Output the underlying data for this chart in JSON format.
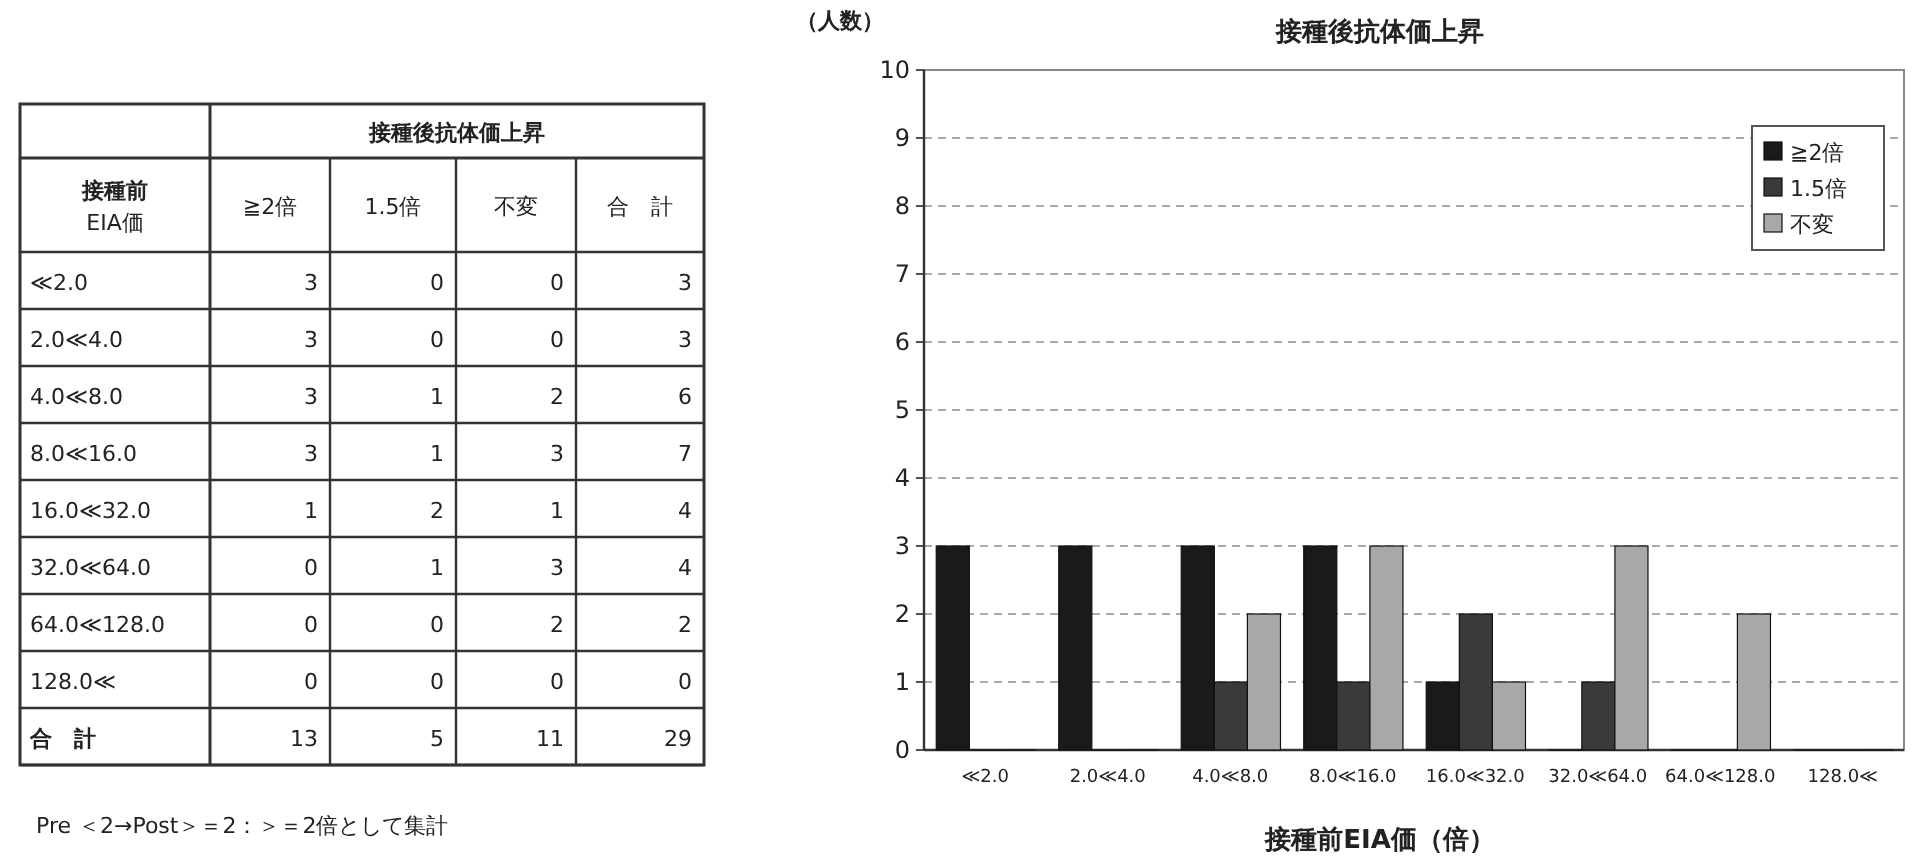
{
  "chart_data": [
    {
      "type": "heatmap",
      "title": "接種後抗体価上昇",
      "ylabel": "接種前EIA価",
      "categories": [
        "≧2倍",
        "1.5倍",
        "不変",
        "合　計"
      ],
      "y_categories": [
        "≪2.0",
        "2.0≪4.0",
        "4.0≪8.0",
        "8.0≪16.0",
        "16.0≪32.0",
        "32.0≪64.0",
        "64.0≪128.0",
        "128.0≪",
        "合　計"
      ],
      "cells": [
        [
          3,
          0,
          0,
          3
        ],
        [
          3,
          0,
          0,
          3
        ],
        [
          3,
          1,
          2,
          6
        ],
        [
          3,
          1,
          3,
          7
        ],
        [
          1,
          2,
          1,
          4
        ],
        [
          0,
          1,
          3,
          4
        ],
        [
          0,
          0,
          2,
          2
        ],
        [
          0,
          0,
          0,
          0
        ],
        [
          13,
          5,
          11,
          29
        ]
      ],
      "data_labels": true,
      "annotations": [
        "Pre ＜2→Post＞＝2：＞＝2倍として集計"
      ]
    },
    {
      "type": "bar",
      "title": "接種後抗体価上昇",
      "xlabel": "接種前EIA価（倍）",
      "ylabel": "（人数）",
      "categories": [
        "≪2.0",
        "2.0≪4.0",
        "4.0≪8.0",
        "8.0≪16.0",
        "16.0≪32.0",
        "32.0≪64.0",
        "64.0≪128.0",
        "128.0≪"
      ],
      "series": [
        {
          "name": "≧2倍",
          "color": "#1a1a1a",
          "values": [
            3,
            3,
            3,
            3,
            1,
            0,
            0,
            0
          ]
        },
        {
          "name": "1.5倍",
          "color": "#3a3a3a",
          "values": [
            0,
            0,
            1,
            1,
            2,
            1,
            0,
            0
          ]
        },
        {
          "name": "不変",
          "color": "#a8a8a8",
          "values": [
            0,
            0,
            2,
            3,
            1,
            3,
            2,
            0
          ]
        }
      ],
      "ylim": [
        0,
        10
      ],
      "yticks": [
        0,
        1,
        2,
        3,
        4,
        5,
        6,
        7,
        8,
        9,
        10
      ],
      "grid": "y",
      "legend": "top right"
    }
  ]
}
